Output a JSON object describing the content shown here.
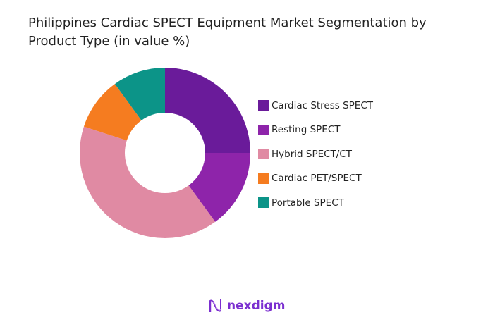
{
  "chart_data": {
    "type": "pie",
    "variant": "donut",
    "title": "Philippines Cardiac SPECT Equipment Market Segmentation by Product Type (in value %)",
    "categories": [
      "Cardiac Stress SPECT",
      "Resting SPECT",
      "Hybrid SPECT/CT",
      "Cardiac PET/SPECT",
      "Portable SPECT"
    ],
    "values": [
      25,
      15,
      40,
      10,
      10
    ],
    "colors": [
      "#6a1b9a",
      "#8e24aa",
      "#e08aa3",
      "#f57c20",
      "#0c9488"
    ],
    "legend_position": "right"
  },
  "brand": {
    "name": "nexdigm",
    "color": "#7b2fd0"
  }
}
